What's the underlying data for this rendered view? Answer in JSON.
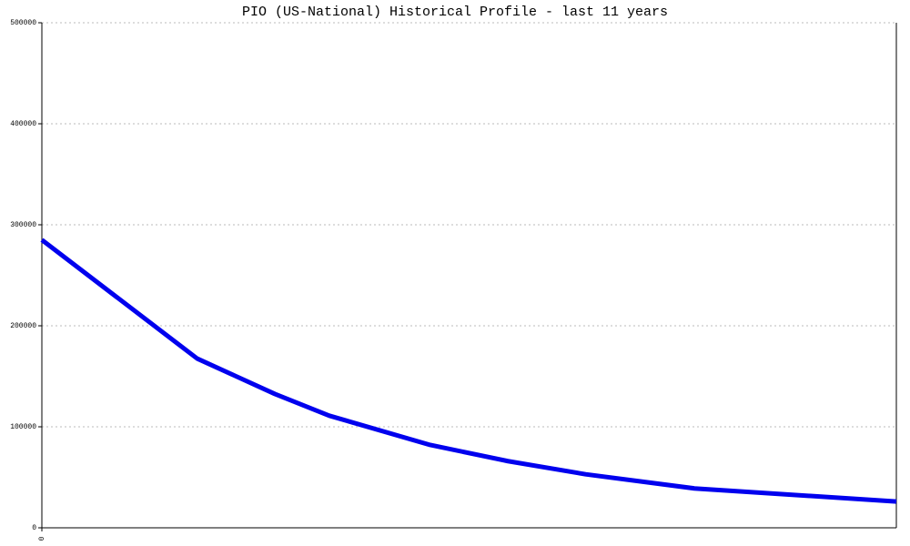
{
  "chart_data": {
    "type": "line",
    "title": "PIO (US-National) Historical Profile - last 11 years",
    "x": [
      0,
      2.0,
      2.5,
      3.0,
      3.7,
      5.0,
      6.0,
      7.0,
      8.4,
      11
    ],
    "xlim": [
      0,
      11
    ],
    "xticks": [
      0
    ],
    "series": [
      {
        "name": "PIO",
        "color": "#0000ee",
        "values": [
          285000,
          167500,
          150000,
          132500,
          111000,
          82000,
          66000,
          53000,
          39000,
          26000
        ]
      }
    ],
    "ylim": [
      0,
      500000
    ],
    "yticks": [
      0,
      100000,
      200000,
      300000,
      400000,
      500000
    ],
    "grid": true
  }
}
